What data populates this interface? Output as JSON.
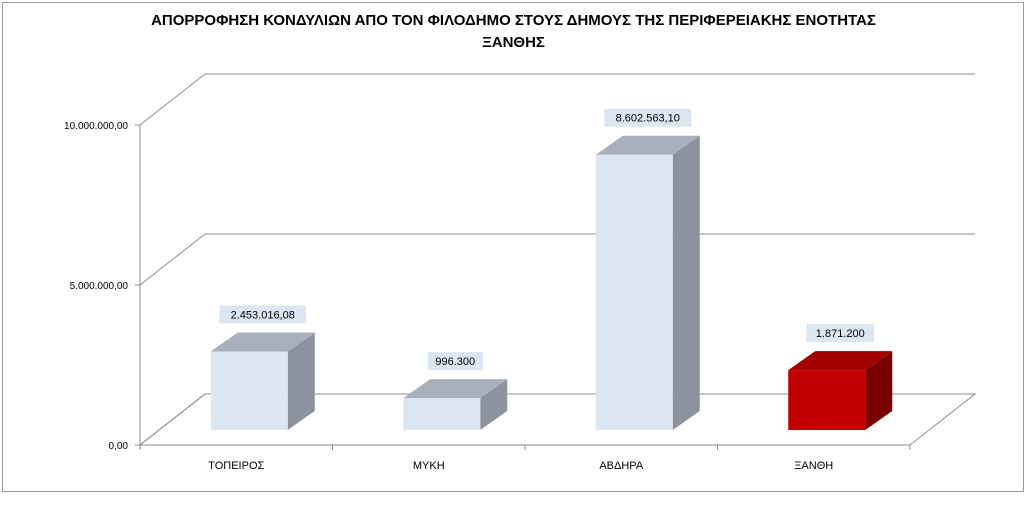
{
  "chart_data": {
    "type": "bar",
    "title_lines": [
      "ΑΠΟΡΡΟΦΗΣΗ ΚΟΝΔΥΛΙΩΝ ΑΠΟ ΤΟΝ ΦΙΛΟΔΗΜΟ ΣΤΟΥΣ ΔΗΜΟΥΣ ΤΗΣ ΠΕΡΙΦΕΡΕΙΑΚΗΣ ΕΝΟΤΗΤΑΣ",
      "ΞΑΝΘΗΣ"
    ],
    "categories": [
      "ΤΟΠΕΙΡΟΣ",
      "ΜΥΚΗ",
      "ΑΒΔΗΡΑ",
      "ΞΑΝΘΗ"
    ],
    "values": [
      2453016.08,
      996300,
      8602563.1,
      1871200
    ],
    "data_labels": [
      "2.453.016,08",
      "996.300",
      "8.602.563,10",
      "1.871.200"
    ],
    "y_ticks": [
      {
        "value": 0,
        "label": "0,00"
      },
      {
        "value": 5000000,
        "label": "5.000.000,00"
      },
      {
        "value": 10000000,
        "label": "10.000.000,00"
      }
    ],
    "ylim": [
      0,
      10000000
    ],
    "xlabel": "",
    "ylabel": "",
    "grid": true,
    "legend": "none",
    "bar_colors": {
      "default": {
        "front": "#dce6f2",
        "top": "#a9b0bb",
        "side": "#8c939e"
      },
      "highlight": {
        "front": "#c00000",
        "top": "#a50000",
        "side": "#7a0000"
      }
    },
    "highlight_index": 3,
    "label_background": "#dce6f2"
  }
}
